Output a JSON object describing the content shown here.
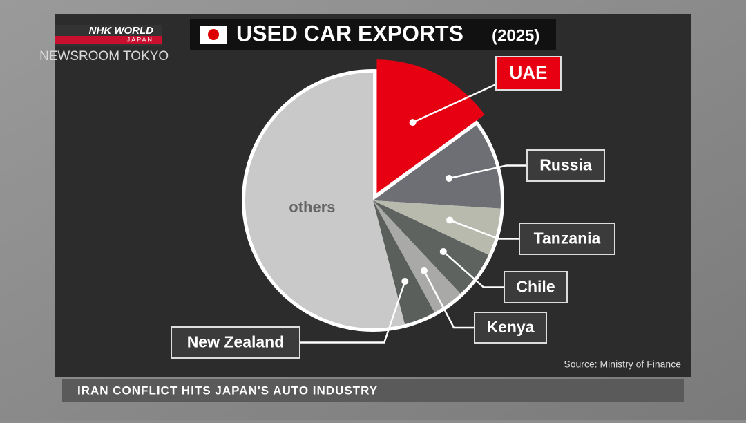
{
  "chart_data": {
    "type": "pie",
    "title": "USED CAR EXPORTS",
    "subtitle": "(2025)",
    "categories": [
      "UAE",
      "Russia",
      "Tanzania",
      "Chile",
      "Kenya",
      "New Zealand",
      "others"
    ],
    "values": [
      15,
      11,
      6,
      6,
      4,
      4,
      54
    ],
    "colors": [
      "#e60012",
      "#6e6f75",
      "#b8baad",
      "#5e6360",
      "#a9aaa8",
      "#5a5f5c",
      "#c9c9c9"
    ],
    "source": "Source: Ministry of Finance"
  },
  "broadcast": {
    "logo": "NHK WORLD",
    "logo_sub": "JAPAN",
    "program": "NEWSROOM TOKYO",
    "headline": "IRAN CONFLICT HITS JAPAN'S AUTO INDUSTRY"
  }
}
